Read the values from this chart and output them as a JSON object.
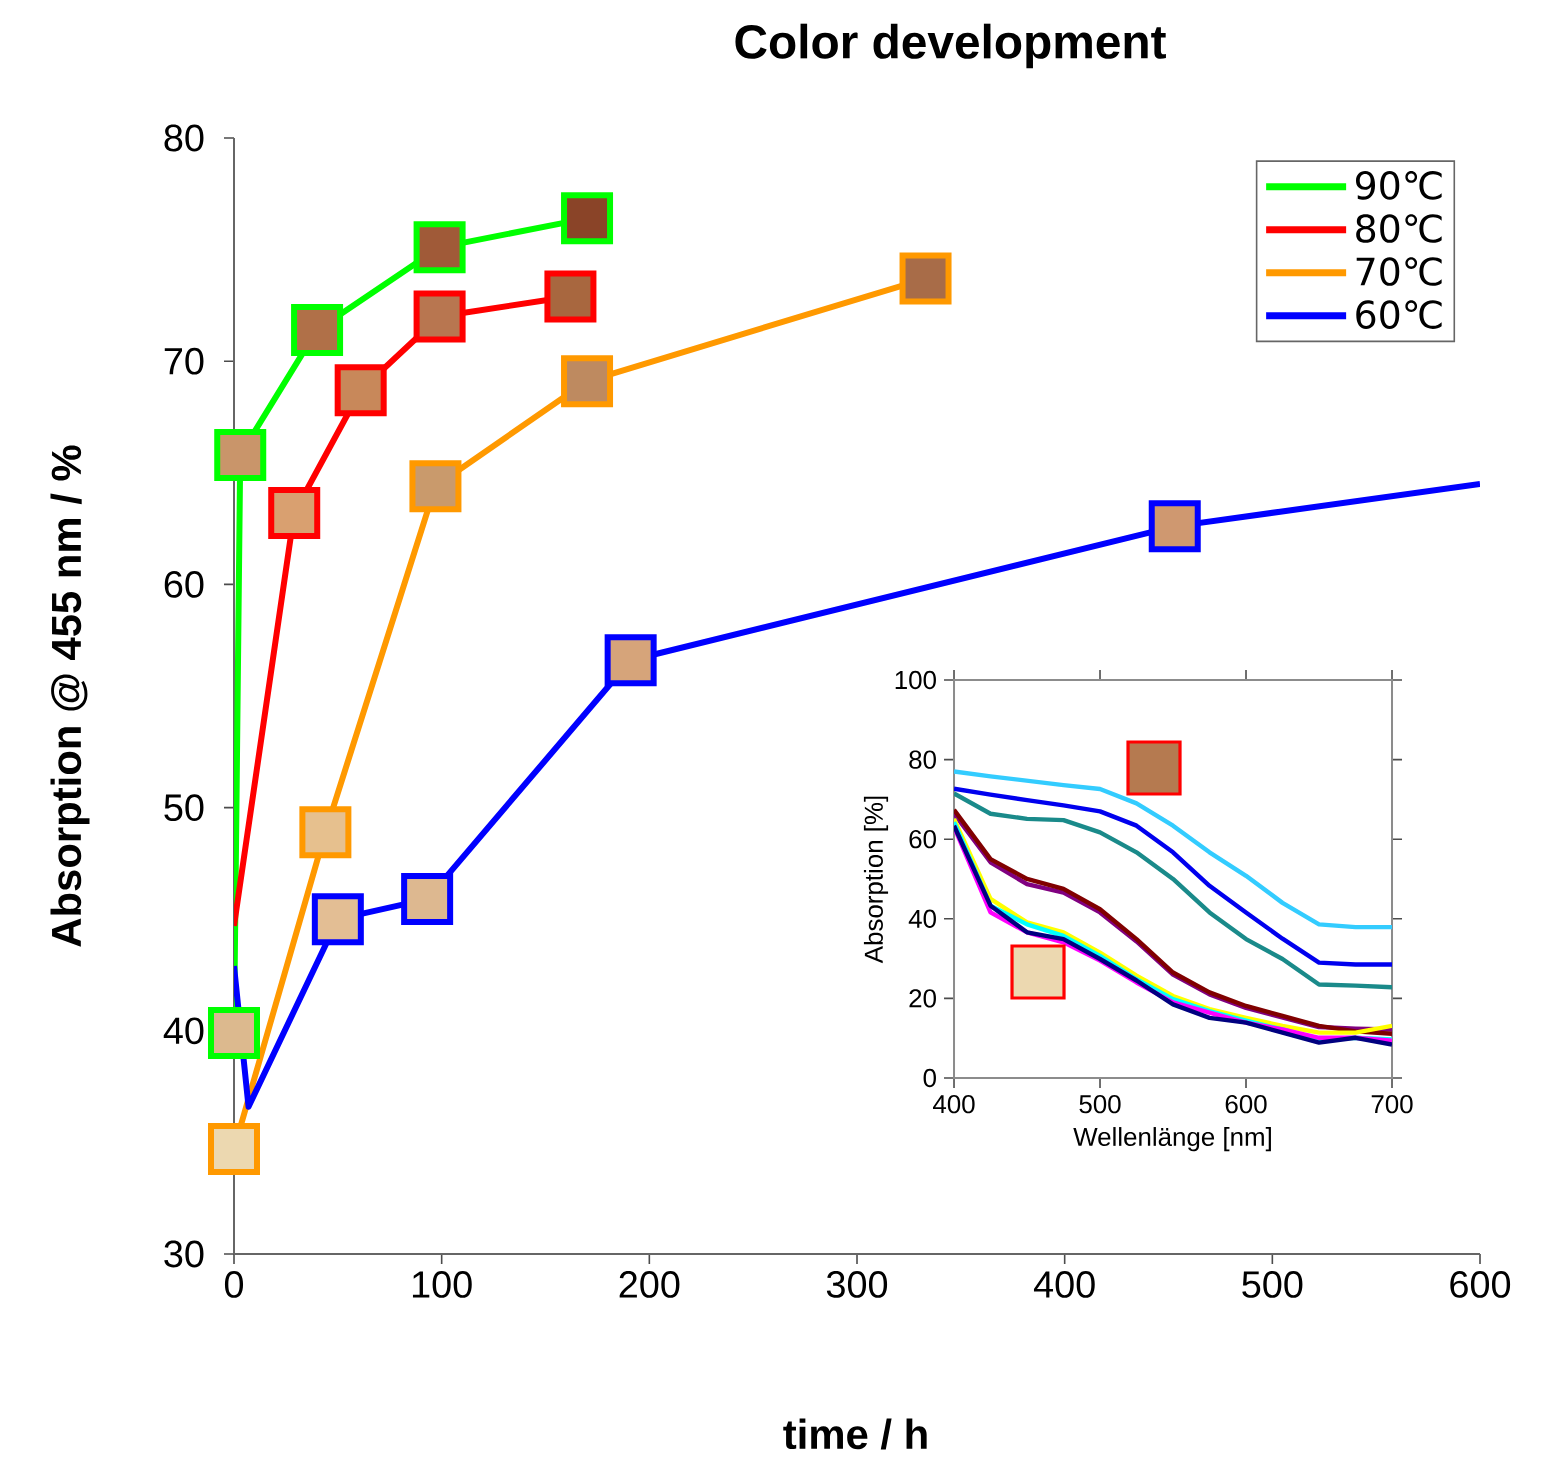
{
  "chart_data": [
    {
      "type": "line",
      "title": "Color development",
      "xlabel": "time / h",
      "ylabel": "Absorption  @ 455 nm / %",
      "xlim": [
        0,
        600
      ],
      "ylim": [
        30,
        80
      ],
      "xticks": [
        0,
        100,
        200,
        300,
        400,
        500,
        600
      ],
      "yticks": [
        30,
        40,
        50,
        60,
        70,
        80
      ],
      "legend": "top right",
      "marker": "square",
      "series": [
        {
          "name": "90℃",
          "color": "#00ff00",
          "x": [
            0,
            3,
            40,
            99,
            170
          ],
          "values": [
            39.9,
            65.8,
            71.4,
            75.1,
            76.4
          ],
          "colors": [
            "#dcb98e",
            "#c9956a",
            "#b07048",
            "#a05a38",
            "#8a4428"
          ]
        },
        {
          "name": "80℃",
          "color": "#ff0000",
          "x": [
            0,
            29,
            61,
            99,
            162
          ],
          "values": [
            44.7,
            63.2,
            68.7,
            72.0,
            72.9
          ],
          "colors": [
            null,
            "#d9a070",
            "#c8885a",
            "#b87650",
            "#a8673f"
          ]
        },
        {
          "name": "70℃",
          "color": "#ff9900",
          "x": [
            0,
            44,
            97,
            170,
            333
          ],
          "values": [
            34.7,
            48.9,
            64.4,
            69.1,
            73.7
          ],
          "colors": [
            "#ecd8b0",
            "#e6c08e",
            "#c99a6c",
            "#be8a60",
            "#a86c48"
          ]
        },
        {
          "name": "60℃",
          "color": "#0000ff",
          "x": [
            0,
            7,
            50,
            93,
            191,
            453,
            600
          ],
          "values": [
            42.9,
            36.6,
            45.0,
            45.9,
            56.6,
            62.6,
            64.5
          ],
          "colors": [
            null,
            null,
            "#e3be94",
            "#ddb890",
            "#d6a47a",
            "#cf9870",
            null
          ]
        }
      ]
    },
    {
      "type": "line",
      "xlabel": "Wellenlänge [nm]",
      "ylabel": "Absorption [%]",
      "xlim": [
        400,
        700
      ],
      "ylim": [
        0,
        100
      ],
      "xticks": [
        400,
        500,
        600,
        700
      ],
      "yticks": [
        0,
        20,
        40,
        60,
        80,
        100
      ],
      "x": [
        400,
        425,
        450,
        475,
        500,
        525,
        550,
        575,
        600,
        625,
        650,
        675,
        700
      ],
      "series": [
        {
          "color": "#33ccff",
          "values": [
            77,
            75.8,
            74.7,
            73.6,
            72.6,
            69,
            63.4,
            56.7,
            50.8,
            44,
            38.6,
            37.9,
            37.9
          ]
        },
        {
          "color": "#0000ee",
          "values": [
            72.7,
            71.2,
            69.8,
            68.5,
            67,
            63.4,
            56.7,
            48.3,
            41.6,
            35,
            29,
            28.5,
            28.5
          ]
        },
        {
          "color": "#1a8a8a",
          "values": [
            71.5,
            66.4,
            65.1,
            64.8,
            61.7,
            56.7,
            50,
            41.6,
            34.9,
            29.9,
            23.5,
            23.2,
            22.8
          ]
        },
        {
          "color": "#800080",
          "values": [
            66.4,
            54.2,
            48.7,
            46.6,
            41.6,
            34.3,
            26,
            21,
            17.6,
            15.2,
            12.8,
            12.4,
            12.2
          ]
        },
        {
          "color": "#800000",
          "values": [
            67.4,
            55,
            50,
            47.5,
            42.4,
            34.9,
            26.5,
            21.5,
            18.1,
            15.6,
            13.1,
            11.7,
            11.1
          ]
        },
        {
          "color": "#ffff00",
          "values": [
            65.1,
            45,
            39.1,
            36.6,
            31.5,
            25.7,
            20.6,
            17.3,
            15.1,
            13.1,
            11.4,
            11.4,
            13.1
          ]
        },
        {
          "color": "#00ffff",
          "values": [
            64.3,
            43.3,
            38.6,
            35.7,
            30.7,
            24.8,
            19.8,
            16.8,
            14.4,
            12.2,
            9.7,
            10.1,
            9.7
          ]
        },
        {
          "color": "#ff00ff",
          "values": [
            63.1,
            41.6,
            36.6,
            34.1,
            29.5,
            24,
            19,
            16.4,
            13.9,
            12.2,
            10.1,
            10.1,
            9.4
          ]
        },
        {
          "color": "#000080",
          "values": [
            63.4,
            43.3,
            36.6,
            34.9,
            29.9,
            24.5,
            18.5,
            15.1,
            13.9,
            11.4,
            8.9,
            10.1,
            8.4
          ]
        }
      ]
    }
  ]
}
